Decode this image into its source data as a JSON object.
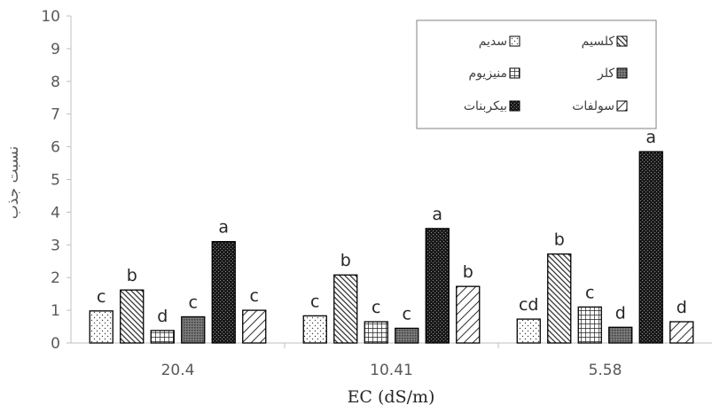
{
  "chart_data": {
    "type": "bar",
    "title": "",
    "xlabel": "EC (dS/m)",
    "ylabel": "نسبت جذب",
    "ylim": [
      0,
      10
    ],
    "yticks": [
      0,
      1,
      2,
      3,
      4,
      5,
      6,
      7,
      8,
      9,
      10
    ],
    "grid": false,
    "legend_position": "top-right",
    "categories": [
      "20.4",
      "10.41",
      "5.58"
    ],
    "series": [
      {
        "name": "سدیم",
        "pattern": "dots",
        "values": [
          0.98,
          0.83,
          0.73
        ],
        "labels": [
          "c",
          "c",
          "cd"
        ]
      },
      {
        "name": "کلسیم",
        "pattern": "diagonal",
        "values": [
          1.62,
          2.08,
          2.72
        ],
        "labels": [
          "b",
          "b",
          "b"
        ]
      },
      {
        "name": "منیزیوم",
        "pattern": "grid",
        "values": [
          0.38,
          0.65,
          1.1
        ],
        "labels": [
          "d",
          "c",
          "c"
        ]
      },
      {
        "name": "کلر",
        "pattern": "dense-dots",
        "values": [
          0.8,
          0.45,
          0.48
        ],
        "labels": [
          "c",
          "c",
          "d"
        ]
      },
      {
        "name": "بیکربنات",
        "pattern": "dark-check",
        "values": [
          3.1,
          3.5,
          5.85
        ],
        "labels": [
          "a",
          "a",
          "a"
        ]
      },
      {
        "name": "سولفات",
        "pattern": "diagonal-cross",
        "values": [
          1.0,
          1.73,
          0.65
        ],
        "labels": [
          "c",
          "b",
          "d"
        ]
      }
    ]
  }
}
